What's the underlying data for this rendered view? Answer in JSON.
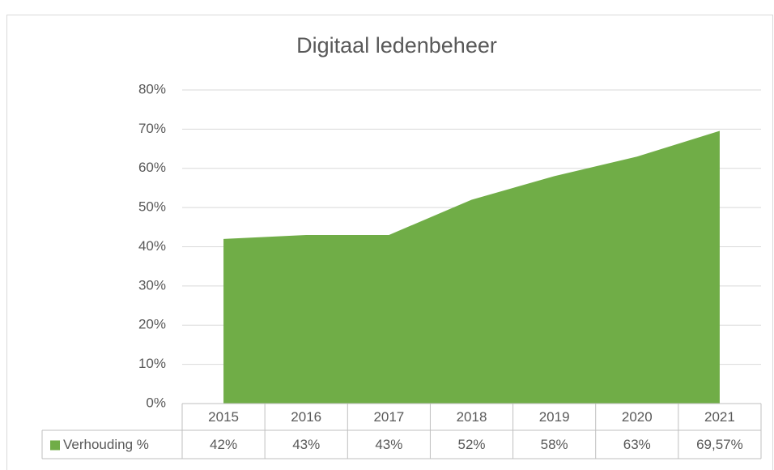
{
  "chart_data": {
    "type": "area",
    "title": "Digitaal ledenbeheer",
    "categories": [
      "2015",
      "2016",
      "2017",
      "2018",
      "2019",
      "2020",
      "2021"
    ],
    "series": [
      {
        "name": "Verhouding %",
        "color": "#70ad47",
        "values": [
          42,
          43,
          43,
          52,
          58,
          63,
          69.57
        ],
        "value_labels": [
          "42%",
          "43%",
          "43%",
          "52%",
          "58%",
          "63%",
          "69,57%"
        ]
      }
    ],
    "ylim": [
      0,
      80
    ],
    "yticks": [
      {
        "value": 0,
        "label": "0%"
      },
      {
        "value": 10,
        "label": "10%"
      },
      {
        "value": 20,
        "label": "20%"
      },
      {
        "value": 30,
        "label": "30%"
      },
      {
        "value": 40,
        "label": "40%"
      },
      {
        "value": 50,
        "label": "50%"
      },
      {
        "value": 60,
        "label": "60%"
      },
      {
        "value": 70,
        "label": "70%"
      },
      {
        "value": 80,
        "label": "80%"
      }
    ],
    "grid": true
  }
}
